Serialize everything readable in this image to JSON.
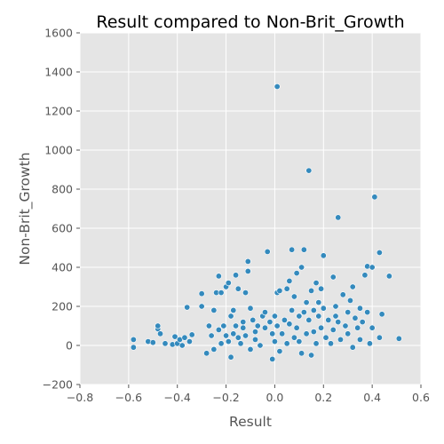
{
  "chart_data": {
    "type": "scatter",
    "title": "Result compared to Non-Brit_Growth",
    "xlabel": "Result",
    "ylabel": "Non-Brit_Growth",
    "xlim": [
      -0.8,
      0.6
    ],
    "ylim": [
      -200,
      1600
    ],
    "xticks": [
      -0.8,
      -0.6,
      -0.4,
      -0.2,
      0.0,
      0.2,
      0.4,
      0.6
    ],
    "yticks": [
      -200,
      0,
      200,
      400,
      600,
      800,
      1000,
      1200,
      1400,
      1600
    ],
    "xtick_labels": [
      "−0.8",
      "−0.6",
      "−0.4",
      "−0.2",
      "0.0",
      "0.2",
      "0.4",
      "0.6"
    ],
    "ytick_labels": [
      "−200",
      "0",
      "200",
      "400",
      "600",
      "800",
      "1000",
      "1200",
      "1400",
      "1600"
    ],
    "grid": true,
    "background_color": "#e5e5e5",
    "marker_color": "#348abd",
    "points": [
      [
        -0.58,
        -10
      ],
      [
        -0.58,
        30
      ],
      [
        -0.52,
        20
      ],
      [
        -0.5,
        15
      ],
      [
        -0.48,
        85
      ],
      [
        -0.48,
        100
      ],
      [
        -0.47,
        60
      ],
      [
        -0.45,
        10
      ],
      [
        -0.42,
        5
      ],
      [
        -0.41,
        45
      ],
      [
        -0.4,
        10
      ],
      [
        -0.39,
        30
      ],
      [
        -0.38,
        0
      ],
      [
        -0.37,
        40
      ],
      [
        -0.36,
        195
      ],
      [
        -0.35,
        20
      ],
      [
        -0.34,
        55
      ],
      [
        -0.3,
        265
      ],
      [
        -0.3,
        200
      ],
      [
        -0.28,
        -40
      ],
      [
        -0.27,
        100
      ],
      [
        -0.26,
        50
      ],
      [
        -0.25,
        -20
      ],
      [
        -0.25,
        180
      ],
      [
        -0.24,
        270
      ],
      [
        -0.23,
        355
      ],
      [
        -0.23,
        80
      ],
      [
        -0.22,
        10
      ],
      [
        -0.22,
        270
      ],
      [
        -0.21,
        100
      ],
      [
        -0.2,
        50
      ],
      [
        -0.2,
        300
      ],
      [
        -0.19,
        320
      ],
      [
        -0.19,
        20
      ],
      [
        -0.18,
        150
      ],
      [
        -0.18,
        -60
      ],
      [
        -0.17,
        180
      ],
      [
        -0.17,
        60
      ],
      [
        -0.16,
        100
      ],
      [
        -0.16,
        360
      ],
      [
        -0.15,
        290
      ],
      [
        -0.15,
        40
      ],
      [
        -0.14,
        10
      ],
      [
        -0.13,
        90
      ],
      [
        -0.13,
        120
      ],
      [
        -0.12,
        270
      ],
      [
        -0.12,
        50
      ],
      [
        -0.11,
        380
      ],
      [
        -0.11,
        430
      ],
      [
        -0.1,
        190
      ],
      [
        -0.1,
        -20
      ],
      [
        -0.09,
        130
      ],
      [
        -0.08,
        70
      ],
      [
        -0.08,
        30
      ],
      [
        -0.07,
        100
      ],
      [
        -0.06,
        0
      ],
      [
        -0.05,
        150
      ],
      [
        -0.04,
        170
      ],
      [
        -0.04,
        90
      ],
      [
        -0.03,
        480
      ],
      [
        -0.02,
        120
      ],
      [
        -0.01,
        60
      ],
      [
        -0.01,
        -70
      ],
      [
        0.0,
        150
      ],
      [
        0.0,
        20
      ],
      [
        0.01,
        270
      ],
      [
        0.01,
        1325
      ],
      [
        0.01,
        100
      ],
      [
        0.02,
        280
      ],
      [
        0.02,
        -30
      ],
      [
        0.03,
        60
      ],
      [
        0.04,
        130
      ],
      [
        0.05,
        290
      ],
      [
        0.05,
        10
      ],
      [
        0.06,
        330
      ],
      [
        0.06,
        110
      ],
      [
        0.07,
        490
      ],
      [
        0.07,
        180
      ],
      [
        0.08,
        40
      ],
      [
        0.08,
        250
      ],
      [
        0.09,
        370
      ],
      [
        0.09,
        90
      ],
      [
        0.1,
        150
      ],
      [
        0.1,
        20
      ],
      [
        0.11,
        400
      ],
      [
        0.11,
        -40
      ],
      [
        0.12,
        170
      ],
      [
        0.12,
        490
      ],
      [
        0.13,
        60
      ],
      [
        0.13,
        220
      ],
      [
        0.14,
        895
      ],
      [
        0.14,
        130
      ],
      [
        0.15,
        280
      ],
      [
        0.15,
        -50
      ],
      [
        0.16,
        180
      ],
      [
        0.16,
        70
      ],
      [
        0.17,
        320
      ],
      [
        0.17,
        10
      ],
      [
        0.18,
        220
      ],
      [
        0.18,
        150
      ],
      [
        0.19,
        290
      ],
      [
        0.19,
        90
      ],
      [
        0.2,
        460
      ],
      [
        0.2,
        190
      ],
      [
        0.21,
        40
      ],
      [
        0.22,
        130
      ],
      [
        0.23,
        10
      ],
      [
        0.24,
        350
      ],
      [
        0.24,
        80
      ],
      [
        0.25,
        150
      ],
      [
        0.25,
        200
      ],
      [
        0.26,
        655
      ],
      [
        0.26,
        120
      ],
      [
        0.27,
        30
      ],
      [
        0.28,
        260
      ],
      [
        0.29,
        100
      ],
      [
        0.3,
        170
      ],
      [
        0.3,
        60
      ],
      [
        0.31,
        230
      ],
      [
        0.32,
        300
      ],
      [
        0.32,
        -10
      ],
      [
        0.33,
        140
      ],
      [
        0.34,
        90
      ],
      [
        0.35,
        190
      ],
      [
        0.35,
        30
      ],
      [
        0.36,
        120
      ],
      [
        0.37,
        360
      ],
      [
        0.38,
        405
      ],
      [
        0.38,
        170
      ],
      [
        0.39,
        10
      ],
      [
        0.4,
        400
      ],
      [
        0.4,
        90
      ],
      [
        0.41,
        760
      ],
      [
        0.43,
        475
      ],
      [
        0.43,
        40
      ],
      [
        0.44,
        160
      ],
      [
        0.47,
        355
      ],
      [
        0.51,
        35
      ]
    ]
  }
}
